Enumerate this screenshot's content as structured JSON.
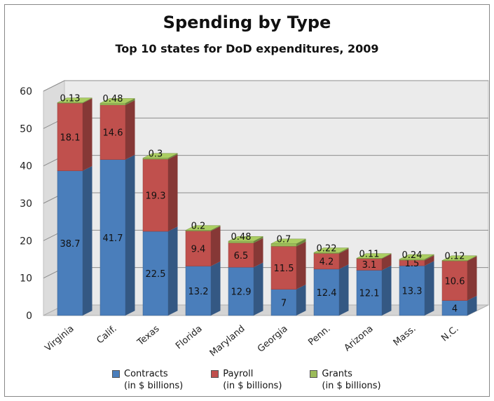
{
  "chart_data": {
    "type": "bar",
    "stacked": true,
    "three_d": true,
    "title": "Spending by Type",
    "subtitle": "Top 10 states for DoD expenditures, 2009",
    "categories": [
      "Virginia",
      "Calif.",
      "Texas",
      "Florida",
      "Maryland",
      "Georgia",
      "Penn.",
      "Arizona",
      "Mass.",
      "N.C."
    ],
    "series": [
      {
        "name": "Contracts",
        "unit_label": "(in $ billions)",
        "color": "#4a7ebb",
        "values": [
          38.7,
          41.7,
          22.5,
          13.2,
          12.9,
          7,
          12.4,
          12.1,
          13.3,
          4
        ]
      },
      {
        "name": "Payroll",
        "unit_label": "(in $ billions)",
        "color": "#c0504d",
        "values": [
          18.1,
          14.6,
          19.3,
          9.4,
          6.5,
          11.5,
          4.2,
          3.1,
          1.5,
          10.6
        ]
      },
      {
        "name": "Grants",
        "unit_label": "(in $ billions)",
        "color": "#9bbb59",
        "values": [
          0.13,
          0.48,
          0.3,
          0.2,
          0.48,
          0.7,
          0.22,
          0.11,
          0.24,
          0.12
        ]
      }
    ],
    "ylim": [
      0,
      60
    ],
    "yticks": [
      0,
      10,
      20,
      30,
      40,
      50,
      60
    ],
    "grid": true,
    "legend": "bottom"
  }
}
